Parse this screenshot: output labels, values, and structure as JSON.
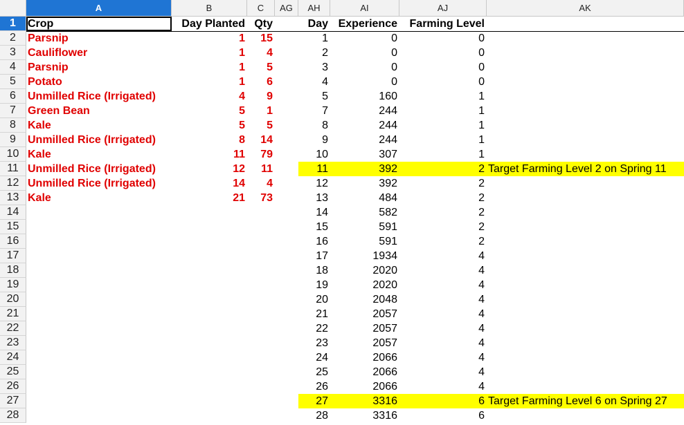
{
  "columns": [
    "A",
    "B",
    "C",
    "AG",
    "AH",
    "AI",
    "AJ",
    "AK"
  ],
  "selected_column": "A",
  "selected_row": "1",
  "headers": {
    "crop": "Crop",
    "day_planted": "Day Planted",
    "qty": "Qty",
    "day": "Day",
    "experience": "Experience",
    "farming_level": "Farming Level"
  },
  "rows": [
    "1",
    "2",
    "3",
    "4",
    "5",
    "6",
    "7",
    "8",
    "9",
    "10",
    "11",
    "12",
    "13",
    "14",
    "15",
    "16",
    "17",
    "18",
    "19",
    "20",
    "21",
    "22",
    "23",
    "24",
    "25",
    "26",
    "27",
    "28"
  ],
  "plantings": [
    {
      "crop": "Parsnip",
      "day": "1",
      "qty": "15"
    },
    {
      "crop": "Cauliflower",
      "day": "1",
      "qty": "4"
    },
    {
      "crop": "Parsnip",
      "day": "1",
      "qty": "5"
    },
    {
      "crop": "Potato",
      "day": "1",
      "qty": "6"
    },
    {
      "crop": "Unmilled Rice (Irrigated)",
      "day": "4",
      "qty": "9"
    },
    {
      "crop": "Green Bean",
      "day": "5",
      "qty": "1"
    },
    {
      "crop": "Kale",
      "day": "5",
      "qty": "5"
    },
    {
      "crop": "Unmilled Rice (Irrigated)",
      "day": "8",
      "qty": "14"
    },
    {
      "crop": "Kale",
      "day": "11",
      "qty": "79"
    },
    {
      "crop": "Unmilled Rice (Irrigated)",
      "day": "12",
      "qty": "11"
    },
    {
      "crop": "Unmilled Rice (Irrigated)",
      "day": "14",
      "qty": "4"
    },
    {
      "crop": "Kale",
      "day": "21",
      "qty": "73"
    }
  ],
  "progress": [
    {
      "day": "1",
      "xp": "0",
      "level": "0",
      "note": ""
    },
    {
      "day": "2",
      "xp": "0",
      "level": "0",
      "note": ""
    },
    {
      "day": "3",
      "xp": "0",
      "level": "0",
      "note": ""
    },
    {
      "day": "4",
      "xp": "0",
      "level": "0",
      "note": ""
    },
    {
      "day": "5",
      "xp": "160",
      "level": "1",
      "note": ""
    },
    {
      "day": "7",
      "xp": "244",
      "level": "1",
      "note": ""
    },
    {
      "day": "8",
      "xp": "244",
      "level": "1",
      "note": ""
    },
    {
      "day": "9",
      "xp": "244",
      "level": "1",
      "note": ""
    },
    {
      "day": "10",
      "xp": "307",
      "level": "1",
      "note": ""
    },
    {
      "day": "11",
      "xp": "392",
      "level": "2",
      "note": "Target Farming Level 2 on Spring 11",
      "highlight": true
    },
    {
      "day": "12",
      "xp": "392",
      "level": "2",
      "note": ""
    },
    {
      "day": "13",
      "xp": "484",
      "level": "2",
      "note": ""
    },
    {
      "day": "14",
      "xp": "582",
      "level": "2",
      "note": ""
    },
    {
      "day": "15",
      "xp": "591",
      "level": "2",
      "note": ""
    },
    {
      "day": "16",
      "xp": "591",
      "level": "2",
      "note": ""
    },
    {
      "day": "17",
      "xp": "1934",
      "level": "4",
      "note": ""
    },
    {
      "day": "18",
      "xp": "2020",
      "level": "4",
      "note": ""
    },
    {
      "day": "19",
      "xp": "2020",
      "level": "4",
      "note": ""
    },
    {
      "day": "20",
      "xp": "2048",
      "level": "4",
      "note": ""
    },
    {
      "day": "21",
      "xp": "2057",
      "level": "4",
      "note": ""
    },
    {
      "day": "22",
      "xp": "2057",
      "level": "4",
      "note": ""
    },
    {
      "day": "23",
      "xp": "2057",
      "level": "4",
      "note": ""
    },
    {
      "day": "24",
      "xp": "2066",
      "level": "4",
      "note": ""
    },
    {
      "day": "25",
      "xp": "2066",
      "level": "4",
      "note": ""
    },
    {
      "day": "26",
      "xp": "2066",
      "level": "4",
      "note": ""
    },
    {
      "day": "27",
      "xp": "3316",
      "level": "6",
      "note": "Target Farming Level 6 on Spring 27",
      "highlight": true
    },
    {
      "day": "28",
      "xp": "3316",
      "level": "6",
      "note": ""
    }
  ],
  "colors": {
    "planting_text": "#e00000",
    "highlight": "#ffff00",
    "selection": "#1f75d4"
  }
}
